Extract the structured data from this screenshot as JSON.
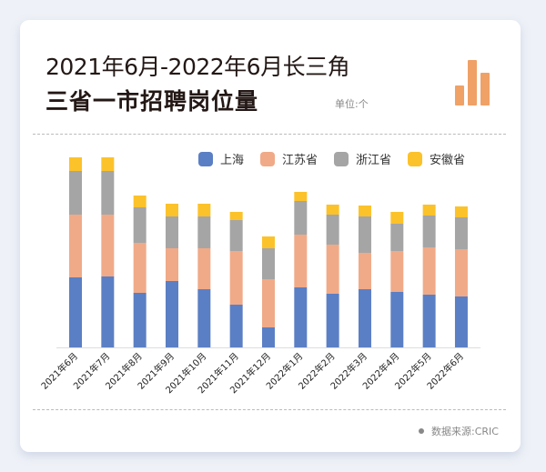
{
  "header": {
    "title_line1": "2021年6月-2022年6月长三角",
    "title_line2": "三省一市招聘岗位量",
    "unit": "单位:个"
  },
  "footer": {
    "source": "数据来源:CRIC"
  },
  "chart_data": {
    "type": "bar",
    "stacked": true,
    "title": "2021年6月-2022年6月长三角三省一市招聘岗位量",
    "unit": "个",
    "note": "No y-axis shown; values are relative estimates from bar heights",
    "categories": [
      "2021年6月",
      "2021年7月",
      "2021年8月",
      "2021年9月",
      "2021年10月",
      "2021年11月",
      "2021年12月",
      "2022年1月",
      "2022年2月",
      "2022年3月",
      "2022年4月",
      "2022年5月",
      "2022年6月"
    ],
    "series": [
      {
        "name": "上海",
        "color": "#5b7fc4",
        "values": [
          77,
          78,
          60,
          73,
          64,
          47,
          22,
          66,
          59,
          64,
          61,
          58,
          56
        ]
      },
      {
        "name": "江苏省",
        "color": "#f0aa88",
        "values": [
          69,
          68,
          55,
          36,
          45,
          59,
          53,
          58,
          54,
          40,
          45,
          52,
          52
        ]
      },
      {
        "name": "浙江省",
        "color": "#a5a5a5",
        "values": [
          48,
          48,
          39,
          35,
          35,
          34,
          34,
          37,
          33,
          40,
          30,
          35,
          35
        ]
      },
      {
        "name": "安徽省",
        "color": "#fcc22a",
        "values": [
          15,
          15,
          13,
          14,
          14,
          9,
          13,
          10,
          11,
          12,
          13,
          12,
          12
        ]
      }
    ],
    "legend_position": "top-right",
    "grid": false
  }
}
